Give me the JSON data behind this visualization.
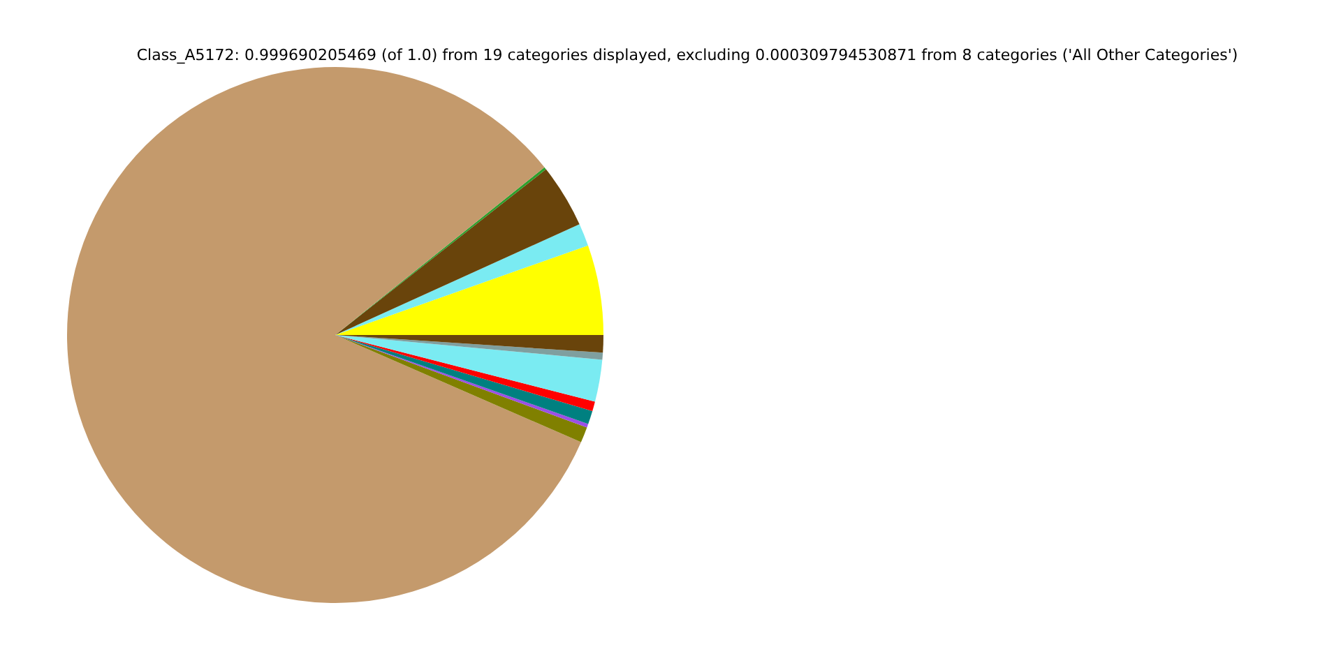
{
  "chart_data": {
    "type": "pie",
    "title": "Class_A5172: 0.999690205469 (of 1.0) from 19 categories displayed, excluding 0.000309794530871 from 8 categories ('All Other Categories')",
    "categories": [
      null,
      null,
      null,
      null,
      null,
      null,
      null,
      null,
      null,
      null,
      null,
      null
    ],
    "values": [
      5.42,
      1.36,
      3.83,
      0.15,
      82.69,
      0.94,
      0.22,
      0.81,
      0.58,
      2.53,
      0.42,
      1.05
    ],
    "colors": [
      "#ffff00",
      "#7aebf2",
      "#69440b",
      "#2ca02c",
      "#c49a6c",
      "#808000",
      "#9b4fe6",
      "#008080",
      "#ff0000",
      "#7aebf2",
      "#7f9f9f",
      "#69440b"
    ]
  }
}
